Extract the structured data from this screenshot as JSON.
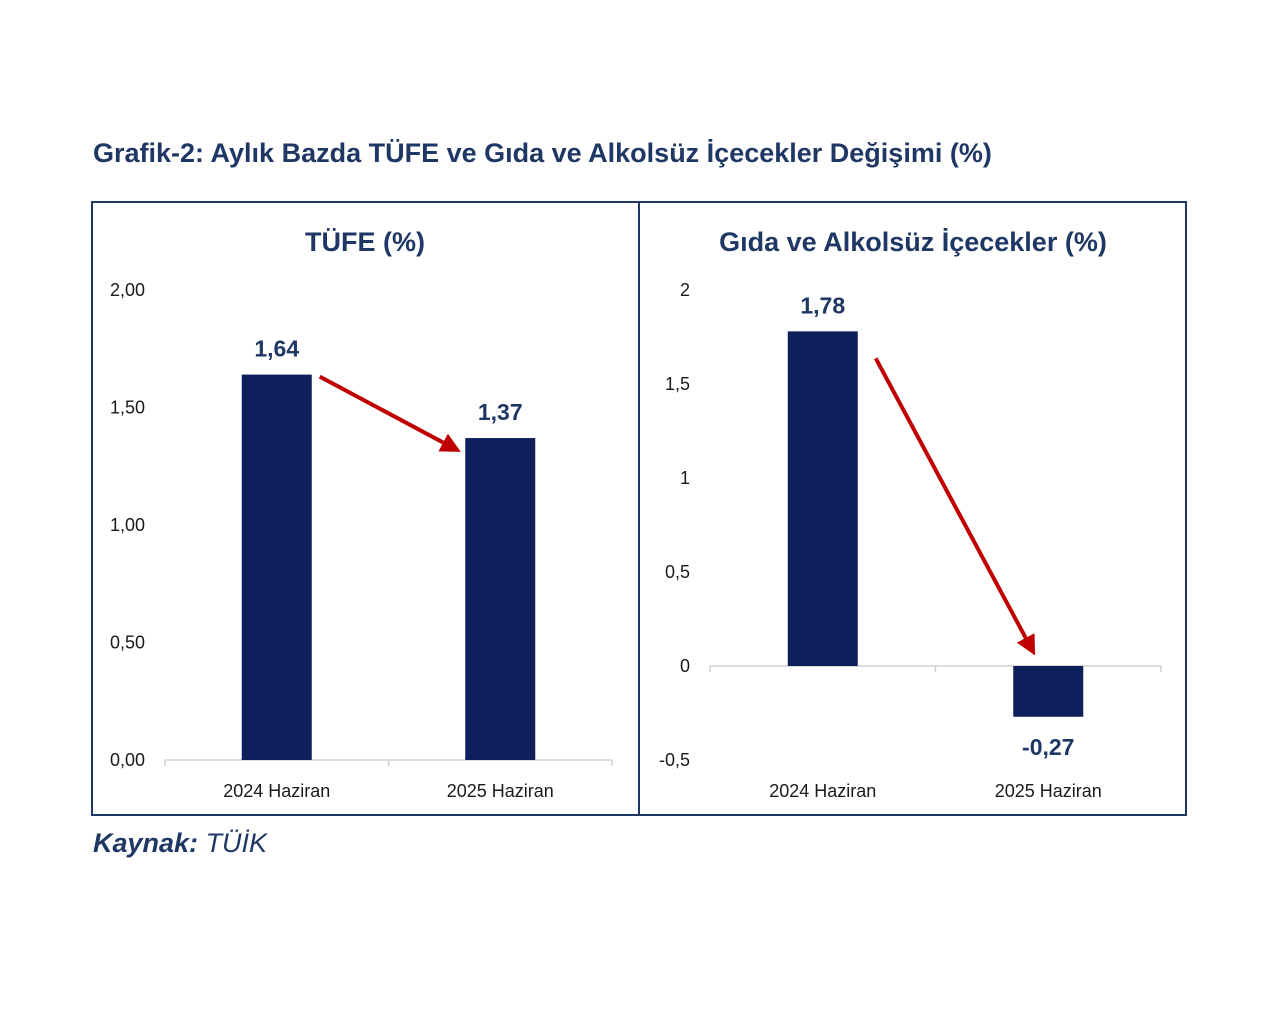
{
  "title": "Grafik-2: Aylık Bazda TÜFE ve Gıda ve Alkolsüz İçecekler Değişimi (%)",
  "source": {
    "label": "Kaynak:",
    "value": "TÜİK"
  },
  "colors": {
    "bar": "#0e1f5c",
    "arrow": "#c00000",
    "text": "#1f3764"
  },
  "chart_data": [
    {
      "type": "bar",
      "title": "TÜFE (%)",
      "categories": [
        "2024 Haziran",
        "2025 Haziran"
      ],
      "values": [
        1.64,
        1.37
      ],
      "value_labels": [
        "1,64",
        "1,37"
      ],
      "ylim": [
        0,
        2
      ],
      "yticks": [
        0,
        0.5,
        1,
        1.5,
        2
      ],
      "ytick_labels": [
        "0,00",
        "0,50",
        "1,00",
        "1,50",
        "2,00"
      ],
      "xlabel": "",
      "ylabel": "",
      "grid": false,
      "annotation": "red arrow from 2024 Haziran bar to 2025 Haziran bar (decrease)"
    },
    {
      "type": "bar",
      "title": "Gıda ve Alkolsüz İçecekler (%)",
      "categories": [
        "2024 Haziran",
        "2025 Haziran"
      ],
      "values": [
        1.78,
        -0.27
      ],
      "value_labels": [
        "1,78",
        "-0,27"
      ],
      "ylim": [
        -0.5,
        2
      ],
      "yticks": [
        -0.5,
        0,
        0.5,
        1,
        1.5,
        2
      ],
      "ytick_labels": [
        "-0,5",
        "0",
        "0,5",
        "1",
        "1,5",
        "2"
      ],
      "xlabel": "",
      "ylabel": "",
      "grid": false,
      "annotation": "red arrow from 2024 Haziran bar to 2025 Haziran bar (decrease)"
    }
  ]
}
